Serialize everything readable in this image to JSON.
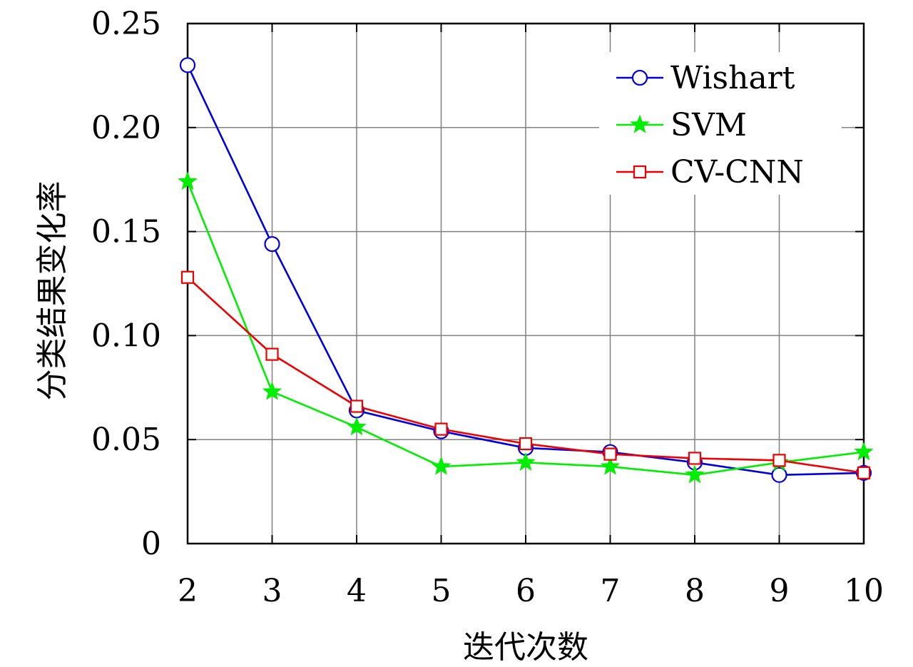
{
  "chart_data": {
    "type": "line",
    "xlabel": "迭代次数",
    "ylabel": "分类结果变化率",
    "x": [
      2,
      3,
      4,
      5,
      6,
      7,
      8,
      9,
      10
    ],
    "xlim": [
      2,
      10
    ],
    "ylim": [
      0,
      0.25
    ],
    "xticks": [
      "2",
      "3",
      "4",
      "5",
      "6",
      "7",
      "8",
      "9",
      "10"
    ],
    "yticks": [
      {
        "value": 0,
        "label": "0"
      },
      {
        "value": 0.05,
        "label": "0.05"
      },
      {
        "value": 0.1,
        "label": "0.10"
      },
      {
        "value": 0.15,
        "label": "0.15"
      },
      {
        "value": 0.2,
        "label": "0.20"
      },
      {
        "value": 0.25,
        "label": "0.25"
      }
    ],
    "grid": true,
    "legend_position": "top-right",
    "series": [
      {
        "name": "Wishart",
        "color": "#0000dd",
        "marker": "circle",
        "values": [
          0.23,
          0.144,
          0.064,
          0.054,
          0.046,
          0.044,
          0.039,
          0.033,
          0.034
        ]
      },
      {
        "name": "SVM",
        "color": "#00ee00",
        "marker": "star",
        "values": [
          0.174,
          0.073,
          0.056,
          0.037,
          0.039,
          0.037,
          0.033,
          0.039,
          0.044
        ]
      },
      {
        "name": "CV-CNN",
        "color": "#ee0000",
        "marker": "square",
        "values": [
          0.128,
          0.091,
          0.066,
          0.055,
          0.048,
          0.043,
          0.041,
          0.04,
          0.034
        ]
      }
    ]
  }
}
